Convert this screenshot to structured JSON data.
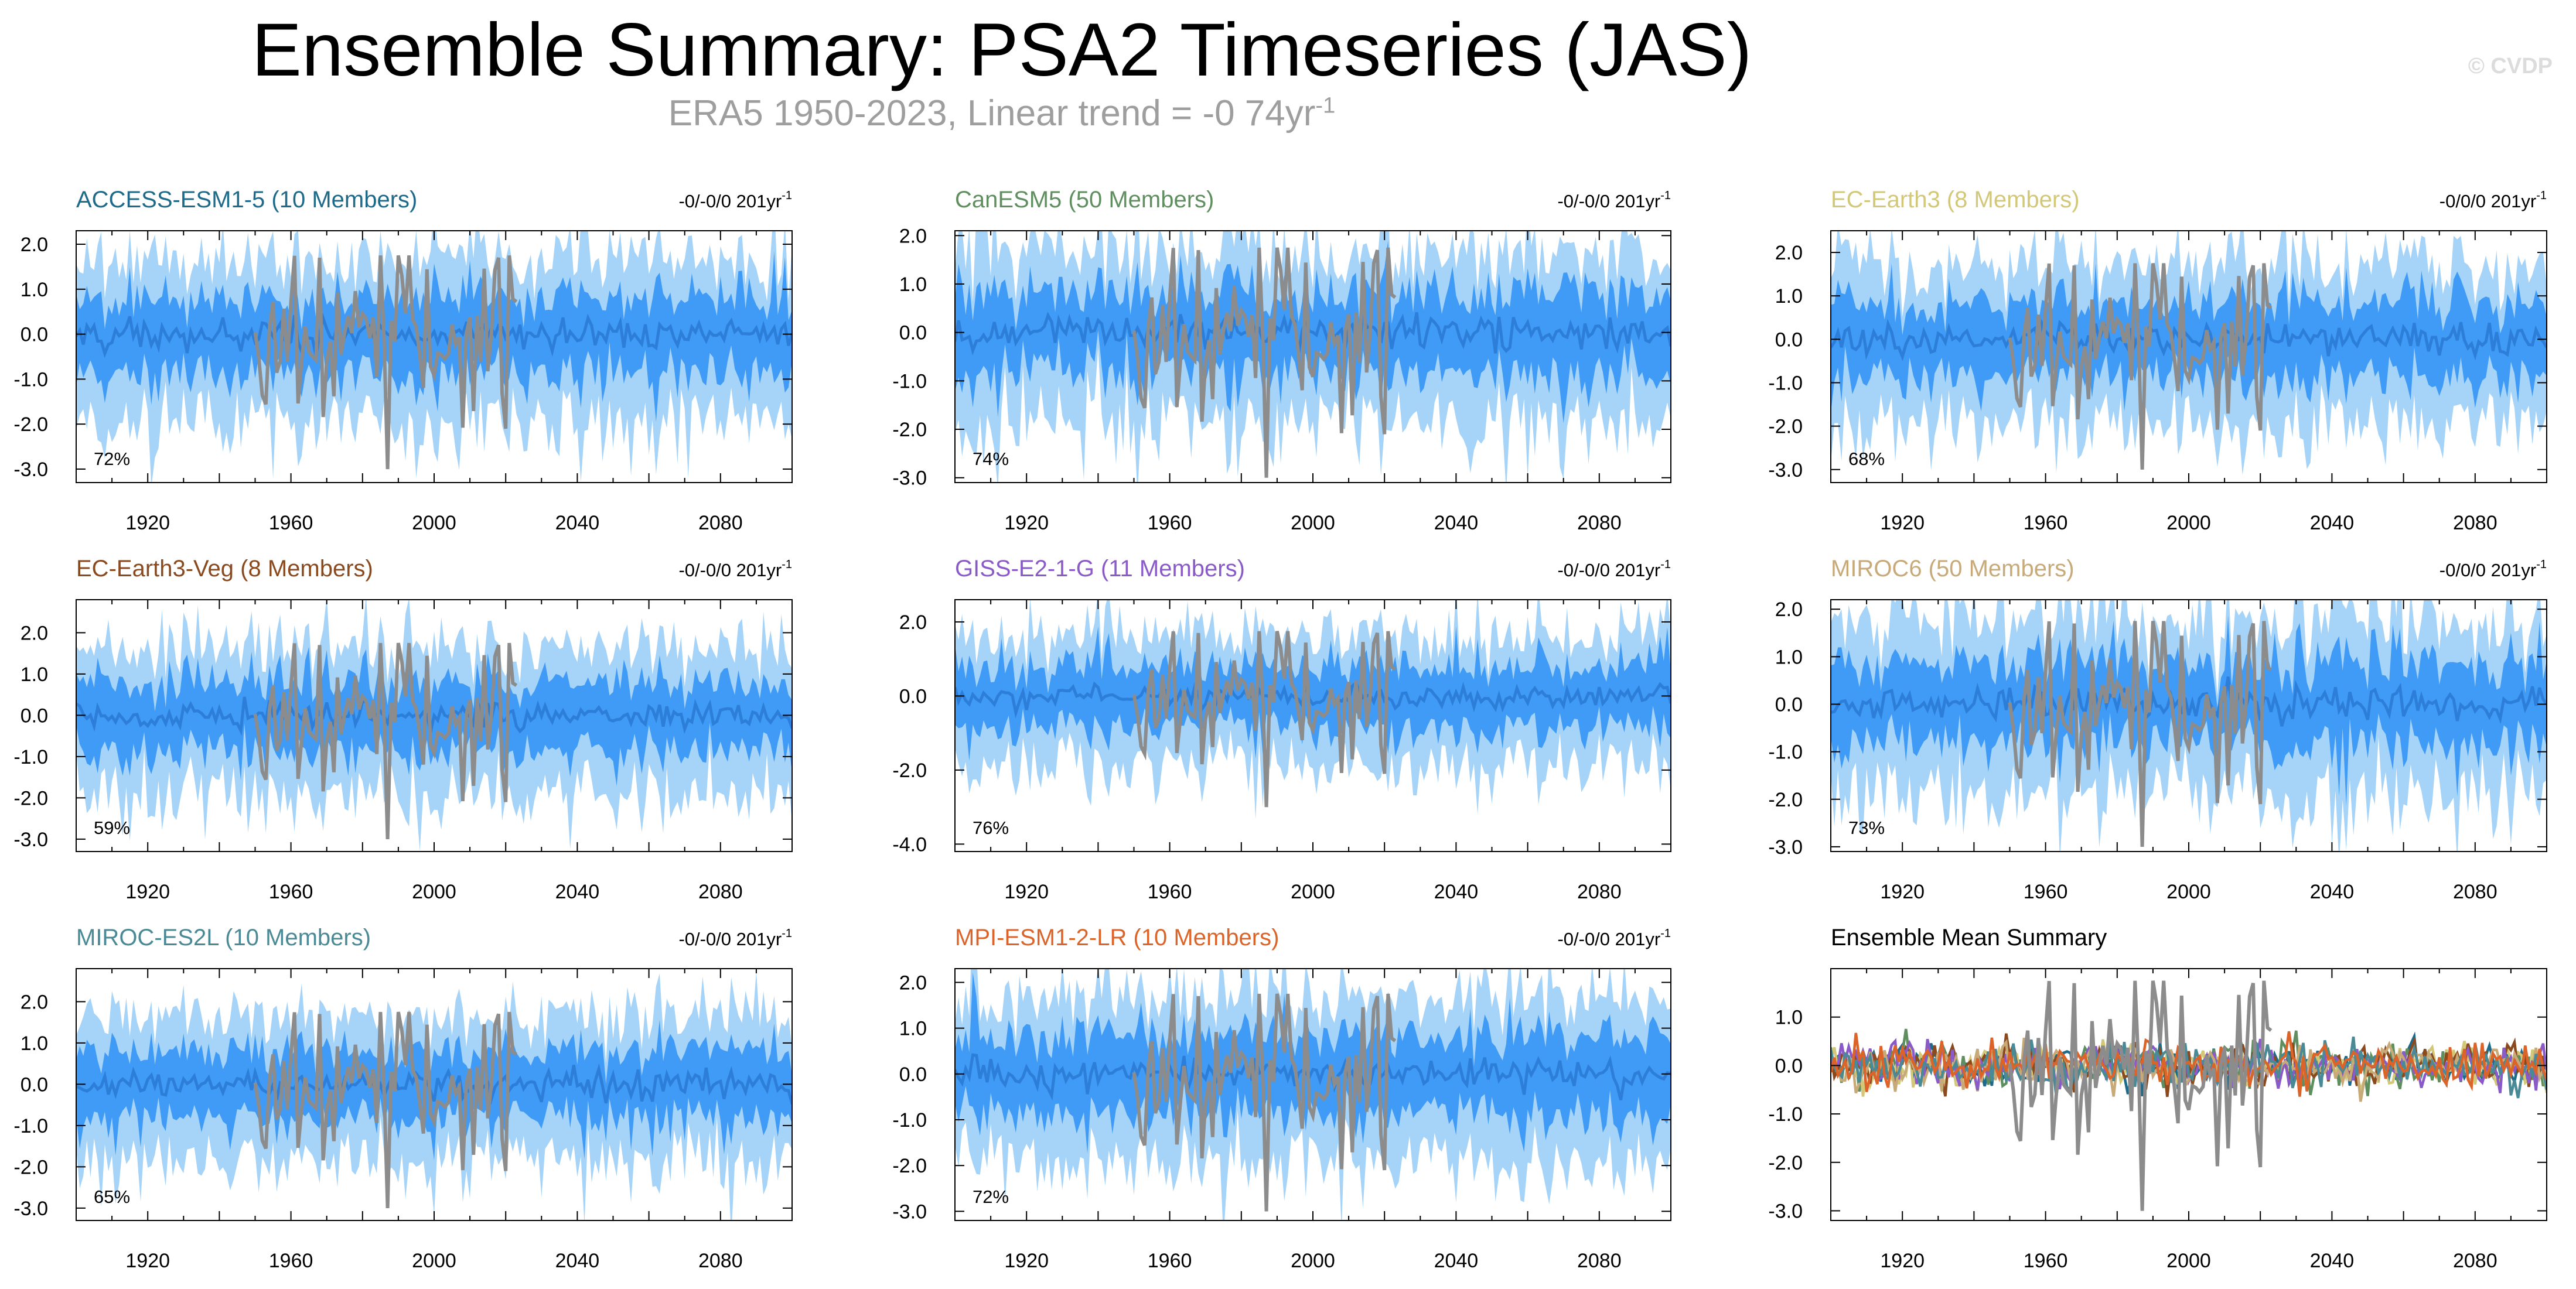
{
  "header": {
    "title": "Ensemble Summary: PSA2 Timeseries (JAS)",
    "subtitle_prefix": "ERA5 1950-2023, Linear trend = -0 74yr",
    "subtitle_sup": "-1",
    "copyright": "© CVDP"
  },
  "colors": {
    "outer_band": "#a6d4f8",
    "inner_band": "#3f9bf5",
    "mean_line": "#2c7ed8",
    "observed_line": "#8c8c8c"
  },
  "chart_data": [
    {
      "type": "line",
      "title": "ACCESS-ESM1-5 (10 Members)",
      "title_color": "#1d6a8a",
      "trend_text": "-0/-0/0 201yr",
      "trend_sup": "-1",
      "percent_label": "72%",
      "xlim": [
        1900,
        2100
      ],
      "ylim": [
        -3.3,
        2.3
      ],
      "yticks": [
        2.0,
        1.0,
        0.0,
        -1.0,
        -2.0,
        -3.0
      ],
      "ytick_labels": [
        "2.0",
        "1.0",
        "0.0",
        "-1.0",
        "-2.0",
        "-3.0"
      ],
      "xtick_labels": [
        "1920",
        "1960",
        "2000",
        "2040",
        "2080"
      ],
      "xticks": [
        1920,
        1960,
        2000,
        2040,
        2080
      ],
      "series": [
        {
          "name": "ensemble",
          "seed": 11
        }
      ]
    },
    {
      "type": "line",
      "title": "CanESM5 (50 Members)",
      "title_color": "#5f8f5f",
      "trend_text": "-0/-0/0 201yr",
      "trend_sup": "-1",
      "percent_label": "74%",
      "xlim": [
        1900,
        2100
      ],
      "ylim": [
        -3.1,
        2.1
      ],
      "yticks": [
        2.0,
        1.0,
        0.0,
        -1.0,
        -2.0,
        -3.0
      ],
      "ytick_labels": [
        "2.0",
        "1.0",
        "0.0",
        "-1.0",
        "-2.0",
        "-3.0"
      ],
      "xtick_labels": [
        "1920",
        "1960",
        "2000",
        "2040",
        "2080"
      ],
      "xticks": [
        1920,
        1960,
        2000,
        2040,
        2080
      ],
      "series": [
        {
          "name": "ensemble",
          "seed": 23
        }
      ]
    },
    {
      "type": "line",
      "title": "EC-Earth3 (8 Members)",
      "title_color": "#d2c878",
      "trend_text": "-0/0/0 201yr",
      "trend_sup": "-1",
      "percent_label": "68%",
      "xlim": [
        1900,
        2100
      ],
      "ylim": [
        -3.3,
        2.5
      ],
      "yticks": [
        2.0,
        1.0,
        0.0,
        -1.0,
        -2.0,
        -3.0
      ],
      "ytick_labels": [
        "2.0",
        "1.0",
        "0.0",
        "-1.0",
        "-2.0",
        "-3.0"
      ],
      "xtick_labels": [
        "1920",
        "1960",
        "2000",
        "2040",
        "2080"
      ],
      "xticks": [
        1920,
        1960,
        2000,
        2040,
        2080
      ],
      "series": [
        {
          "name": "ensemble",
          "seed": 37
        }
      ]
    },
    {
      "type": "line",
      "title": "EC-Earth3-Veg (8 Members)",
      "title_color": "#8a4a1e",
      "trend_text": "-0/-0/0 201yr",
      "trend_sup": "-1",
      "percent_label": "59%",
      "xlim": [
        1900,
        2100
      ],
      "ylim": [
        -3.3,
        2.8
      ],
      "yticks": [
        2.0,
        1.0,
        0.0,
        -1.0,
        -2.0,
        -3.0
      ],
      "ytick_labels": [
        "2.0",
        "1.0",
        "0.0",
        "-1.0",
        "-2.0",
        "-3.0"
      ],
      "xtick_labels": [
        "1920",
        "1960",
        "2000",
        "2040",
        "2080"
      ],
      "xticks": [
        1920,
        1960,
        2000,
        2040,
        2080
      ],
      "series": [
        {
          "name": "ensemble",
          "seed": 41
        }
      ]
    },
    {
      "type": "line",
      "title": "GISS-E2-1-G (11 Members)",
      "title_color": "#8a5ac8",
      "trend_text": "-0/-0/0 201yr",
      "trend_sup": "-1",
      "percent_label": "76%",
      "xlim": [
        1900,
        2100
      ],
      "ylim": [
        -4.2,
        2.6
      ],
      "yticks": [
        2.0,
        0.0,
        -2.0,
        -4.0
      ],
      "ytick_labels": [
        "2.0",
        "0.0",
        "-2.0",
        "-4.0"
      ],
      "xtick_labels": [
        "1920",
        "1960",
        "2000",
        "2040",
        "2080"
      ],
      "xticks": [
        1920,
        1960,
        2000,
        2040,
        2080
      ],
      "series": [
        {
          "name": "ensemble",
          "seed": 53
        }
      ]
    },
    {
      "type": "line",
      "title": "MIROC6 (50 Members)",
      "title_color": "#c8aa78",
      "trend_text": "-0/0/0 201yr",
      "trend_sup": "-1",
      "percent_label": "73%",
      "xlim": [
        1900,
        2100
      ],
      "ylim": [
        -3.1,
        2.2
      ],
      "yticks": [
        2.0,
        1.0,
        0.0,
        -1.0,
        -2.0,
        -3.0
      ],
      "ytick_labels": [
        "2.0",
        "1.0",
        "0.0",
        "-1.0",
        "-2.0",
        "-3.0"
      ],
      "xtick_labels": [
        "1920",
        "1960",
        "2000",
        "2040",
        "2080"
      ],
      "xticks": [
        1920,
        1960,
        2000,
        2040,
        2080
      ],
      "series": [
        {
          "name": "ensemble",
          "seed": 67
        }
      ]
    },
    {
      "type": "line",
      "title": "MIROC-ES2L (10 Members)",
      "title_color": "#4a8a96",
      "trend_text": "-0/-0/0 201yr",
      "trend_sup": "-1",
      "percent_label": "65%",
      "xlim": [
        1900,
        2100
      ],
      "ylim": [
        -3.3,
        2.8
      ],
      "yticks": [
        2.0,
        1.0,
        0.0,
        -1.0,
        -2.0,
        -3.0
      ],
      "ytick_labels": [
        "2.0",
        "1.0",
        "0.0",
        "-1.0",
        "-2.0",
        "-3.0"
      ],
      "xtick_labels": [
        "1920",
        "1960",
        "2000",
        "2040",
        "2080"
      ],
      "xticks": [
        1920,
        1960,
        2000,
        2040,
        2080
      ],
      "series": [
        {
          "name": "ensemble",
          "seed": 71
        }
      ]
    },
    {
      "type": "line",
      "title": "MPI-ESM1-2-LR (10 Members)",
      "title_color": "#dc6428",
      "trend_text": "-0/-0/0 201yr",
      "trend_sup": "-1",
      "percent_label": "72%",
      "xlim": [
        1900,
        2100
      ],
      "ylim": [
        -3.2,
        2.3
      ],
      "yticks": [
        2.0,
        1.0,
        0.0,
        -1.0,
        -2.0,
        -3.0
      ],
      "ytick_labels": [
        "2.0",
        "1.0",
        "0.0",
        "-1.0",
        "-2.0",
        "-3.0"
      ],
      "xtick_labels": [
        "1920",
        "1960",
        "2000",
        "2040",
        "2080"
      ],
      "xticks": [
        1920,
        1960,
        2000,
        2040,
        2080
      ],
      "series": [
        {
          "name": "ensemble",
          "seed": 83
        }
      ]
    },
    {
      "type": "line",
      "title": "Ensemble Mean Summary",
      "title_color": "#000000",
      "trend_text": "",
      "trend_sup": "",
      "percent_label": "",
      "summary": true,
      "xlim": [
        1900,
        2100
      ],
      "ylim": [
        -3.2,
        2.0
      ],
      "yticks": [
        1.0,
        0.0,
        -1.0,
        -2.0,
        -3.0
      ],
      "ytick_labels": [
        "1.0",
        "0.0",
        "-1.0",
        "-2.0",
        "-3.0"
      ],
      "xtick_labels": [
        "1920",
        "1960",
        "2000",
        "2040",
        "2080"
      ],
      "xticks": [
        1920,
        1960,
        2000,
        2040,
        2080
      ],
      "series": [
        {
          "name": "ACCESS-ESM1-5",
          "color": "#1d6a8a",
          "seed": 11
        },
        {
          "name": "CanESM5",
          "color": "#5f8f5f",
          "seed": 23
        },
        {
          "name": "EC-Earth3",
          "color": "#d2c878",
          "seed": 37
        },
        {
          "name": "EC-Earth3-Veg",
          "color": "#8a4a1e",
          "seed": 41
        },
        {
          "name": "GISS-E2-1-G",
          "color": "#8a5ac8",
          "seed": 53
        },
        {
          "name": "MIROC6",
          "color": "#c8aa78",
          "seed": 67
        },
        {
          "name": "MIROC-ES2L",
          "color": "#4a8a96",
          "seed": 71
        },
        {
          "name": "MPI-ESM1-2-LR",
          "color": "#dc6428",
          "seed": 83
        }
      ]
    }
  ]
}
